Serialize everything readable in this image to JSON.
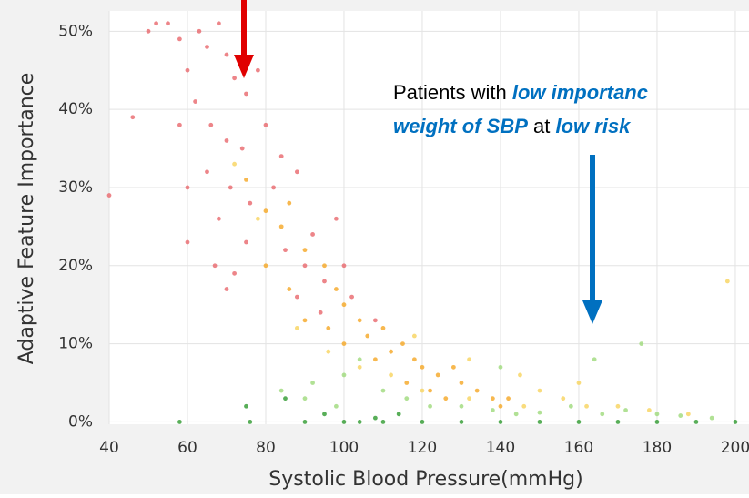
{
  "chart_data": {
    "type": "scatter",
    "xlabel": "Systolic Blood Pressure(mmHg)",
    "ylabel": "Adaptive Feature Importance",
    "xlim": [
      40,
      203.5
    ],
    "ylim": [
      -0.3,
      52.6
    ],
    "xticks": [
      40,
      60,
      80,
      100,
      120,
      140,
      160,
      180,
      200
    ],
    "yticks": [
      {
        "value": 0,
        "label": "0%"
      },
      {
        "value": 10,
        "label": "10%"
      },
      {
        "value": 20,
        "label": "20%"
      },
      {
        "value": 30,
        "label": "30%"
      },
      {
        "value": 40,
        "label": "40%"
      },
      {
        "value": 50,
        "label": "50%"
      }
    ],
    "grid": true,
    "annotation": {
      "line1": [
        "Patients with",
        "low importanc"
      ],
      "line2": [
        "weight of SBP",
        "at",
        "low risk"
      ]
    },
    "series": [
      {
        "color": "#e8676b",
        "x": [
          52,
          55,
          50,
          58,
          63,
          65,
          68,
          70,
          72,
          75,
          78,
          60,
          62,
          58,
          66,
          70,
          74,
          80,
          84,
          88,
          46,
          60,
          65,
          71,
          76,
          82,
          40,
          68,
          75,
          60,
          67,
          72,
          85,
          90,
          95,
          100,
          88,
          94,
          102,
          108,
          70,
          92,
          98
        ],
        "values": [
          51,
          51,
          50,
          49,
          50,
          48,
          51,
          47,
          44,
          42,
          45,
          45,
          41,
          38,
          38,
          36,
          35,
          38,
          34,
          32,
          39,
          30,
          32,
          30,
          28,
          30,
          29,
          26,
          23,
          23,
          20,
          19,
          22,
          20,
          18,
          20,
          16,
          14,
          16,
          13,
          17,
          24,
          26
        ]
      },
      {
        "color": "#f5a623",
        "x": [
          75,
          80,
          84,
          86,
          90,
          95,
          98,
          100,
          104,
          106,
          110,
          112,
          115,
          118,
          120,
          124,
          128,
          130,
          134,
          138,
          142,
          100,
          96,
          108,
          116,
          122,
          126,
          140,
          90,
          86,
          80
        ],
        "values": [
          31,
          27,
          25,
          28,
          22,
          20,
          17,
          15,
          13,
          11,
          12,
          9,
          10,
          8,
          7,
          6,
          7,
          5,
          4,
          3,
          3,
          10,
          12,
          8,
          5,
          4,
          3,
          2,
          13,
          17,
          20
        ]
      },
      {
        "color": "#f7d35c",
        "x": [
          72,
          78,
          88,
          96,
          104,
          112,
          120,
          132,
          146,
          150,
          156,
          162,
          170,
          178,
          188,
          145,
          160,
          198,
          132,
          118
        ],
        "values": [
          33,
          26,
          12,
          9,
          7,
          6,
          4,
          3,
          2,
          4,
          3,
          2,
          2,
          1.5,
          1,
          6,
          5,
          18,
          8,
          11
        ]
      },
      {
        "color": "#9ed97a",
        "x": [
          84,
          92,
          100,
          104,
          110,
          116,
          122,
          130,
          138,
          144,
          150,
          158,
          166,
          172,
          180,
          186,
          194,
          176,
          164,
          140,
          98,
          90
        ],
        "values": [
          4,
          5,
          6,
          8,
          4,
          3,
          2,
          2,
          1.5,
          1,
          1.2,
          2,
          1,
          1.5,
          1,
          0.8,
          0.5,
          10,
          8,
          7,
          2,
          3
        ]
      },
      {
        "color": "#2e9a2e",
        "x": [
          58,
          76,
          90,
          100,
          104,
          110,
          120,
          130,
          140,
          150,
          160,
          170,
          180,
          190,
          200,
          85,
          95,
          108,
          75,
          114
        ],
        "values": [
          0,
          0,
          0,
          0,
          0,
          0,
          0,
          0,
          0,
          0,
          0,
          0,
          0,
          0,
          0,
          3,
          1,
          0.5,
          2,
          1
        ]
      }
    ]
  }
}
